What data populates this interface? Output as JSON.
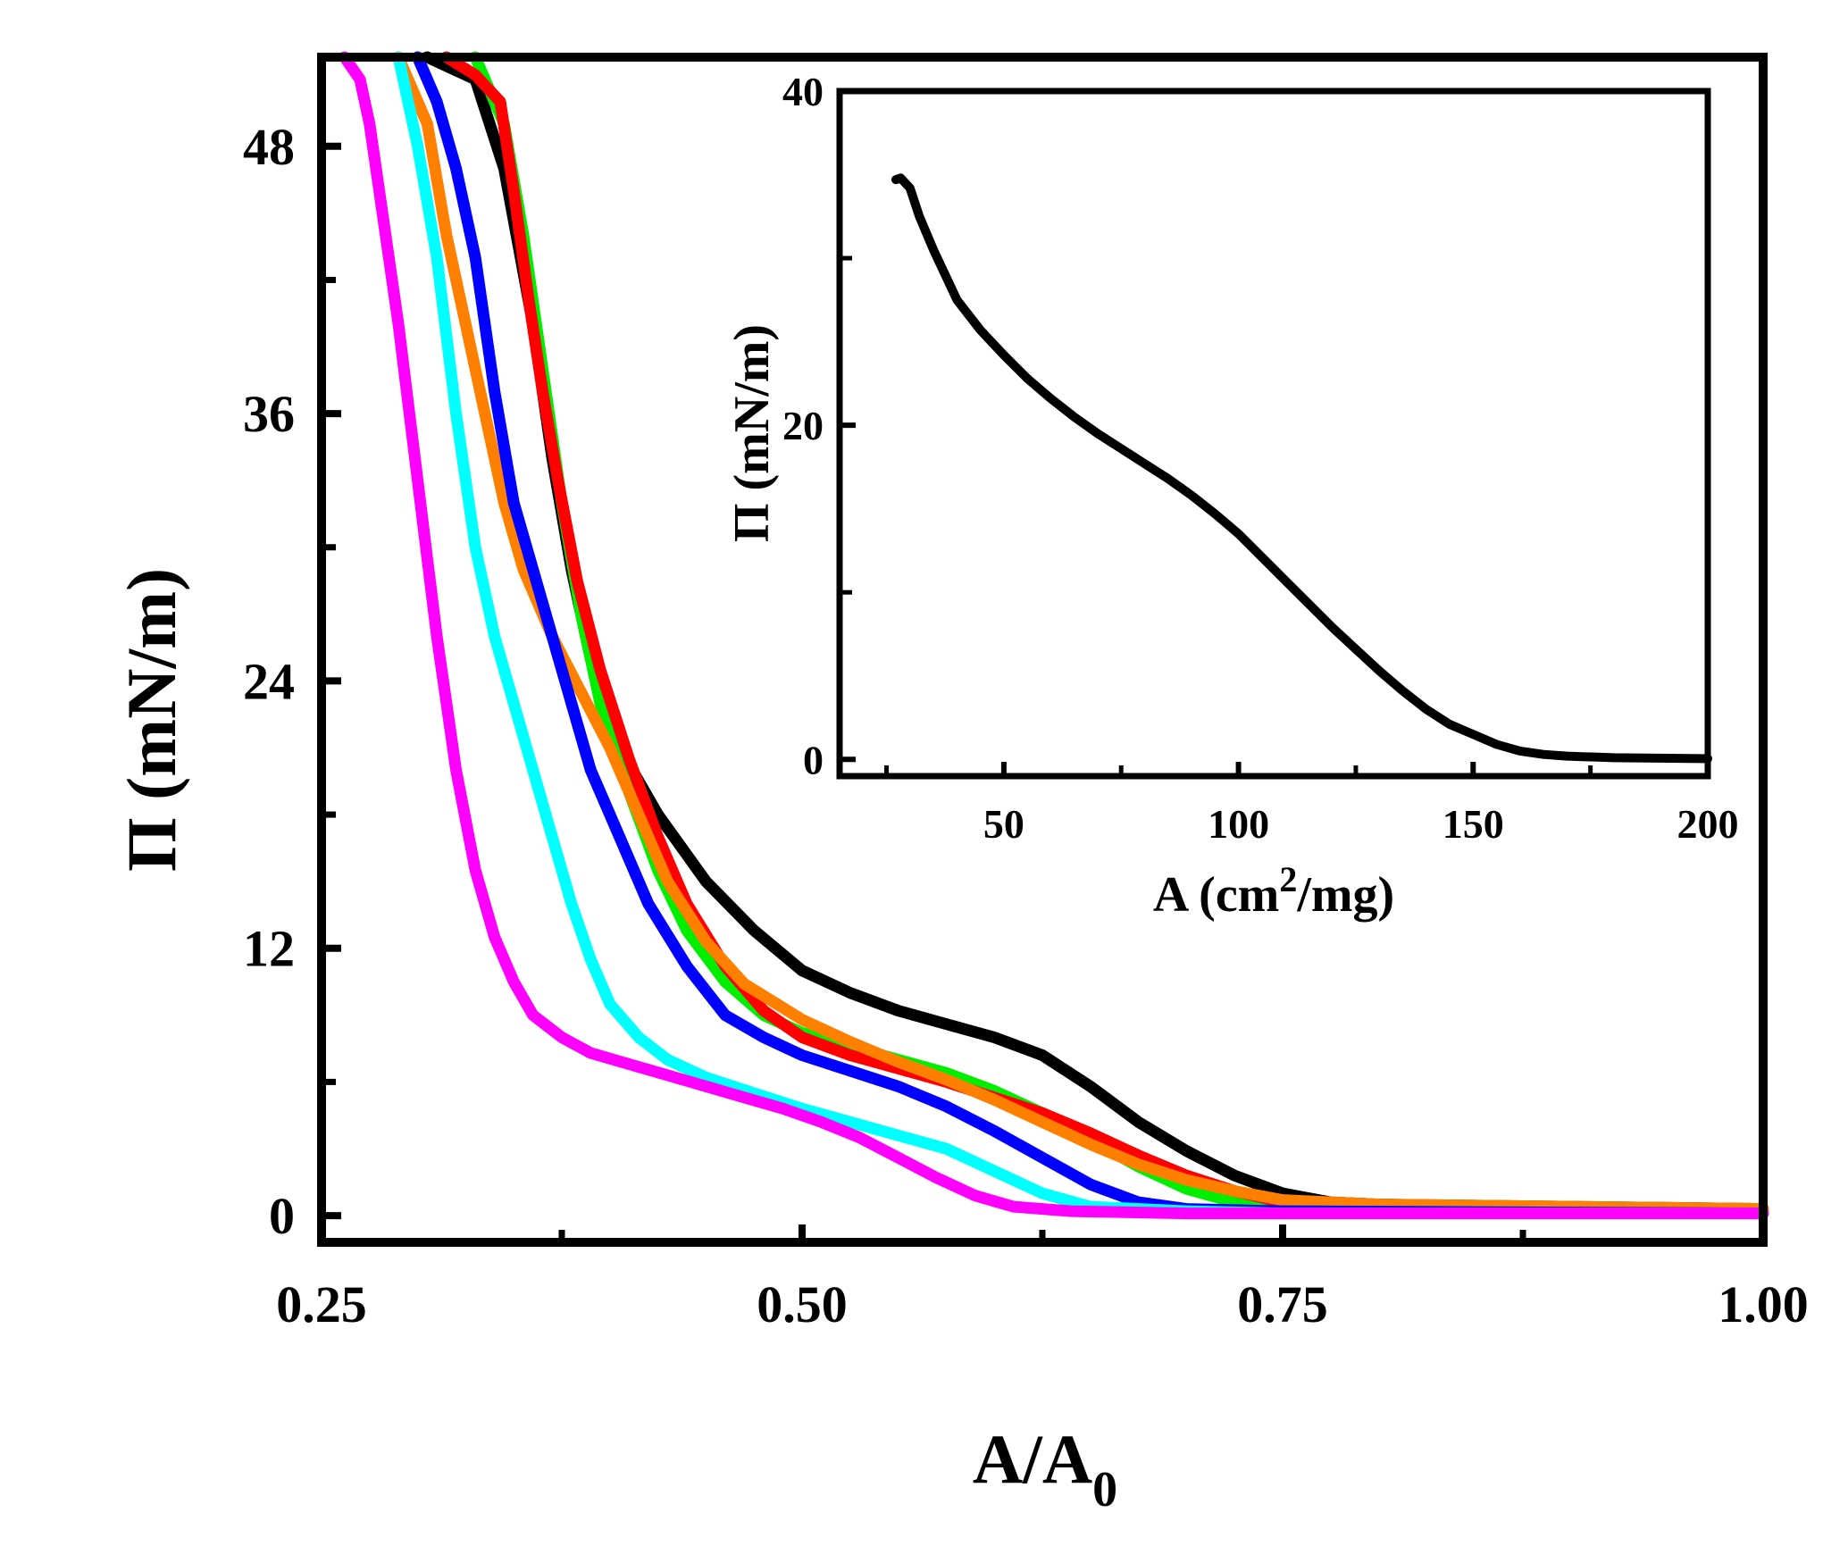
{
  "chart_data": [
    {
      "type": "line",
      "title": "",
      "xlabel": "A/A",
      "xlabel_sub": "0",
      "ylabel": "Π (mN/m)",
      "xlim": [
        0.25,
        1.0
      ],
      "ylim": [
        -1.2,
        52
      ],
      "x_ticks": [
        0.25,
        0.5,
        0.75,
        1.0
      ],
      "x_tick_labels": [
        "0.25",
        "0.50",
        "0.75",
        "1.00"
      ],
      "y_ticks": [
        0,
        12,
        24,
        36,
        48
      ],
      "y_tick_labels": [
        "0",
        "12",
        "24",
        "36",
        "48"
      ],
      "grid": false,
      "legend": "none",
      "series": [
        {
          "name": "black",
          "color": "#000000",
          "points": [
            [
              0.305,
              52
            ],
            [
              0.33,
              51
            ],
            [
              0.345,
              47
            ],
            [
              0.36,
              40
            ],
            [
              0.37,
              34
            ],
            [
              0.38,
              29
            ],
            [
              0.39,
              25
            ],
            [
              0.405,
              21
            ],
            [
              0.425,
              18
            ],
            [
              0.45,
              15
            ],
            [
              0.475,
              12.8
            ],
            [
              0.5,
              11
            ],
            [
              0.525,
              10
            ],
            [
              0.55,
              9.2
            ],
            [
              0.575,
              8.6
            ],
            [
              0.6,
              8.0
            ],
            [
              0.625,
              7.2
            ],
            [
              0.65,
              5.8
            ],
            [
              0.675,
              4.2
            ],
            [
              0.7,
              2.9
            ],
            [
              0.725,
              1.8
            ],
            [
              0.75,
              1.0
            ],
            [
              0.775,
              0.6
            ],
            [
              0.8,
              0.5
            ],
            [
              0.9,
              0.4
            ],
            [
              1.0,
              0.3
            ]
          ]
        },
        {
          "name": "green",
          "color": "#00ee00",
          "points": [
            [
              0.33,
              52
            ],
            [
              0.345,
              49
            ],
            [
              0.355,
              44
            ],
            [
              0.365,
              38
            ],
            [
              0.375,
              32
            ],
            [
              0.385,
              27
            ],
            [
              0.395,
              23
            ],
            [
              0.41,
              19
            ],
            [
              0.425,
              15.5
            ],
            [
              0.44,
              12.8
            ],
            [
              0.46,
              10.5
            ],
            [
              0.48,
              9.0
            ],
            [
              0.5,
              8.2
            ],
            [
              0.525,
              7.6
            ],
            [
              0.55,
              7.0
            ],
            [
              0.575,
              6.4
            ],
            [
              0.6,
              5.6
            ],
            [
              0.625,
              4.6
            ],
            [
              0.65,
              3.4
            ],
            [
              0.675,
              2.2
            ],
            [
              0.7,
              1.2
            ],
            [
              0.725,
              0.6
            ],
            [
              0.75,
              0.35
            ],
            [
              0.8,
              0.25
            ],
            [
              0.9,
              0.2
            ],
            [
              1.0,
              0.2
            ]
          ]
        },
        {
          "name": "red",
          "color": "#ff0000",
          "points": [
            [
              0.315,
              52
            ],
            [
              0.33,
              51.2
            ],
            [
              0.343,
              50
            ],
            [
              0.35,
              46
            ],
            [
              0.358,
              41
            ],
            [
              0.365,
              37
            ],
            [
              0.373,
              33
            ],
            [
              0.383,
              28.5
            ],
            [
              0.395,
              24.5
            ],
            [
              0.41,
              20.5
            ],
            [
              0.425,
              17
            ],
            [
              0.44,
              14
            ],
            [
              0.46,
              11.2
            ],
            [
              0.48,
              9.2
            ],
            [
              0.5,
              8.0
            ],
            [
              0.525,
              7.2
            ],
            [
              0.55,
              6.6
            ],
            [
              0.575,
              6.0
            ],
            [
              0.6,
              5.3
            ],
            [
              0.625,
              4.6
            ],
            [
              0.65,
              3.7
            ],
            [
              0.675,
              2.7
            ],
            [
              0.7,
              1.8
            ],
            [
              0.725,
              1.1
            ],
            [
              0.75,
              0.6
            ],
            [
              0.8,
              0.4
            ],
            [
              0.9,
              0.3
            ],
            [
              1.0,
              0.3
            ]
          ]
        },
        {
          "name": "orange",
          "color": "#ff8000",
          "points": [
            [
              0.29,
              52
            ],
            [
              0.305,
              49
            ],
            [
              0.315,
              44
            ],
            [
              0.325,
              40
            ],
            [
              0.335,
              36
            ],
            [
              0.345,
              32
            ],
            [
              0.355,
              29
            ],
            [
              0.37,
              26
            ],
            [
              0.385,
              23.5
            ],
            [
              0.4,
              21
            ],
            [
              0.415,
              18
            ],
            [
              0.43,
              15
            ],
            [
              0.45,
              12.3
            ],
            [
              0.47,
              10.4
            ],
            [
              0.5,
              8.8
            ],
            [
              0.525,
              7.8
            ],
            [
              0.55,
              6.9
            ],
            [
              0.575,
              6.1
            ],
            [
              0.6,
              5.2
            ],
            [
              0.625,
              4.2
            ],
            [
              0.65,
              3.2
            ],
            [
              0.675,
              2.3
            ],
            [
              0.7,
              1.6
            ],
            [
              0.725,
              1.1
            ],
            [
              0.75,
              0.7
            ],
            [
              0.8,
              0.5
            ],
            [
              0.9,
              0.4
            ],
            [
              1.0,
              0.3
            ]
          ]
        },
        {
          "name": "blue",
          "color": "#0000ff",
          "points": [
            [
              0.3,
              52
            ],
            [
              0.31,
              50
            ],
            [
              0.32,
              47
            ],
            [
              0.33,
              43
            ],
            [
              0.34,
              37
            ],
            [
              0.35,
              32
            ],
            [
              0.36,
              29
            ],
            [
              0.37,
              26
            ],
            [
              0.38,
              23
            ],
            [
              0.39,
              20
            ],
            [
              0.405,
              17
            ],
            [
              0.42,
              14
            ],
            [
              0.44,
              11.2
            ],
            [
              0.46,
              9
            ],
            [
              0.48,
              8
            ],
            [
              0.5,
              7.2
            ],
            [
              0.525,
              6.5
            ],
            [
              0.55,
              5.8
            ],
            [
              0.575,
              4.9
            ],
            [
              0.6,
              3.8
            ],
            [
              0.625,
              2.6
            ],
            [
              0.65,
              1.4
            ],
            [
              0.675,
              0.6
            ],
            [
              0.7,
              0.3
            ],
            [
              0.75,
              0.2
            ],
            [
              1.0,
              0.1
            ]
          ]
        },
        {
          "name": "cyan",
          "color": "#00ffff",
          "points": [
            [
              0.29,
              52
            ],
            [
              0.3,
              48
            ],
            [
              0.31,
              43
            ],
            [
              0.32,
              36
            ],
            [
              0.33,
              30
            ],
            [
              0.34,
              26
            ],
            [
              0.35,
              23
            ],
            [
              0.36,
              20
            ],
            [
              0.37,
              17
            ],
            [
              0.38,
              14
            ],
            [
              0.39,
              11.5
            ],
            [
              0.4,
              9.5
            ],
            [
              0.415,
              8.0
            ],
            [
              0.43,
              7.0
            ],
            [
              0.45,
              6.2
            ],
            [
              0.475,
              5.5
            ],
            [
              0.5,
              4.8
            ],
            [
              0.525,
              4.2
            ],
            [
              0.55,
              3.6
            ],
            [
              0.575,
              3.0
            ],
            [
              0.6,
              2.0
            ],
            [
              0.625,
              1.0
            ],
            [
              0.65,
              0.4
            ],
            [
              0.7,
              0.2
            ],
            [
              0.75,
              0.1
            ],
            [
              1.0,
              0.1
            ]
          ]
        },
        {
          "name": "magenta",
          "color": "#ff00ff",
          "points": [
            [
              0.262,
              52
            ],
            [
              0.27,
              51
            ],
            [
              0.275,
              49
            ],
            [
              0.28,
              46
            ],
            [
              0.29,
              40
            ],
            [
              0.3,
              33
            ],
            [
              0.31,
              26
            ],
            [
              0.32,
              20
            ],
            [
              0.33,
              15.5
            ],
            [
              0.34,
              12.5
            ],
            [
              0.35,
              10.5
            ],
            [
              0.36,
              9
            ],
            [
              0.375,
              8
            ],
            [
              0.39,
              7.3
            ],
            [
              0.41,
              6.8
            ],
            [
              0.43,
              6.3
            ],
            [
              0.45,
              5.8
            ],
            [
              0.47,
              5.3
            ],
            [
              0.49,
              4.8
            ],
            [
              0.51,
              4.2
            ],
            [
              0.53,
              3.5
            ],
            [
              0.55,
              2.6
            ],
            [
              0.57,
              1.7
            ],
            [
              0.59,
              0.9
            ],
            [
              0.61,
              0.4
            ],
            [
              0.64,
              0.2
            ],
            [
              0.7,
              0.1
            ],
            [
              1.0,
              0.1
            ]
          ]
        }
      ]
    },
    {
      "type": "line",
      "title": "",
      "xlabel": "A (cm",
      "xlabel_sup": "2",
      "xlabel_end": "/mg)",
      "ylabel": "Π (mN/m)",
      "xlim": [
        15,
        200
      ],
      "ylim": [
        -1,
        40
      ],
      "x_ticks": [
        50,
        100,
        150,
        200
      ],
      "x_tick_labels": [
        "50",
        "100",
        "150",
        "200"
      ],
      "x_minor_ticks": [
        25,
        75,
        125,
        175
      ],
      "y_ticks": [
        0,
        20,
        40
      ],
      "y_tick_labels": [
        "0",
        "20",
        "40"
      ],
      "y_minor_ticks": [
        10,
        30
      ],
      "grid": false,
      "legend": "none",
      "series": [
        {
          "name": "inset",
          "color": "#000000",
          "points": [
            [
              27,
              34.7
            ],
            [
              28,
              34.8
            ],
            [
              30,
              34.2
            ],
            [
              32,
              32.5
            ],
            [
              35,
              30.5
            ],
            [
              40,
              27.5
            ],
            [
              45,
              25.7
            ],
            [
              50,
              24.2
            ],
            [
              55,
              22.8
            ],
            [
              60,
              21.6
            ],
            [
              65,
              20.5
            ],
            [
              70,
              19.5
            ],
            [
              75,
              18.6
            ],
            [
              80,
              17.7
            ],
            [
              85,
              16.8
            ],
            [
              90,
              15.8
            ],
            [
              95,
              14.7
            ],
            [
              100,
              13.5
            ],
            [
              105,
              12.1
            ],
            [
              110,
              10.7
            ],
            [
              115,
              9.3
            ],
            [
              120,
              7.9
            ],
            [
              125,
              6.6
            ],
            [
              130,
              5.3
            ],
            [
              135,
              4.1
            ],
            [
              140,
              3.0
            ],
            [
              145,
              2.1
            ],
            [
              150,
              1.5
            ],
            [
              155,
              0.9
            ],
            [
              160,
              0.5
            ],
            [
              165,
              0.3
            ],
            [
              170,
              0.2
            ],
            [
              180,
              0.1
            ],
            [
              200,
              0.05
            ]
          ]
        }
      ]
    }
  ]
}
